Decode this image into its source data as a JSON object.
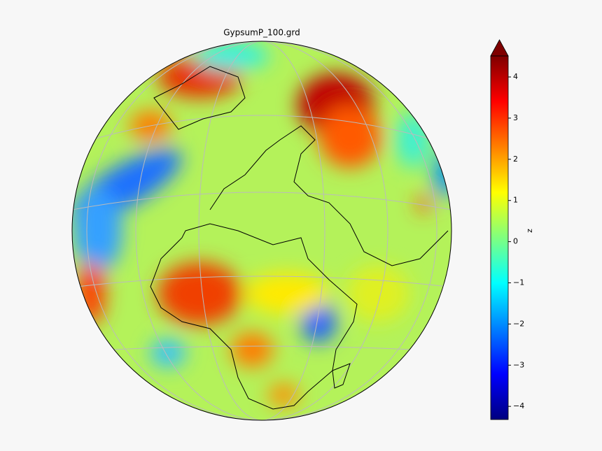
{
  "chart_data": {
    "type": "map",
    "title": "GypsumP_100.grd",
    "projection": "orthographic",
    "colormap": "jet",
    "colorbar": {
      "label": "z",
      "clim": [
        -4.32,
        4.51
      ],
      "extend": "max",
      "ticks": [
        {
          "value": -4,
          "label": "−4"
        },
        {
          "value": -3,
          "label": "−3"
        },
        {
          "value": -2,
          "label": "−2"
        },
        {
          "value": -1,
          "label": "−1"
        },
        0,
        1,
        2,
        3,
        4
      ]
    }
  }
}
